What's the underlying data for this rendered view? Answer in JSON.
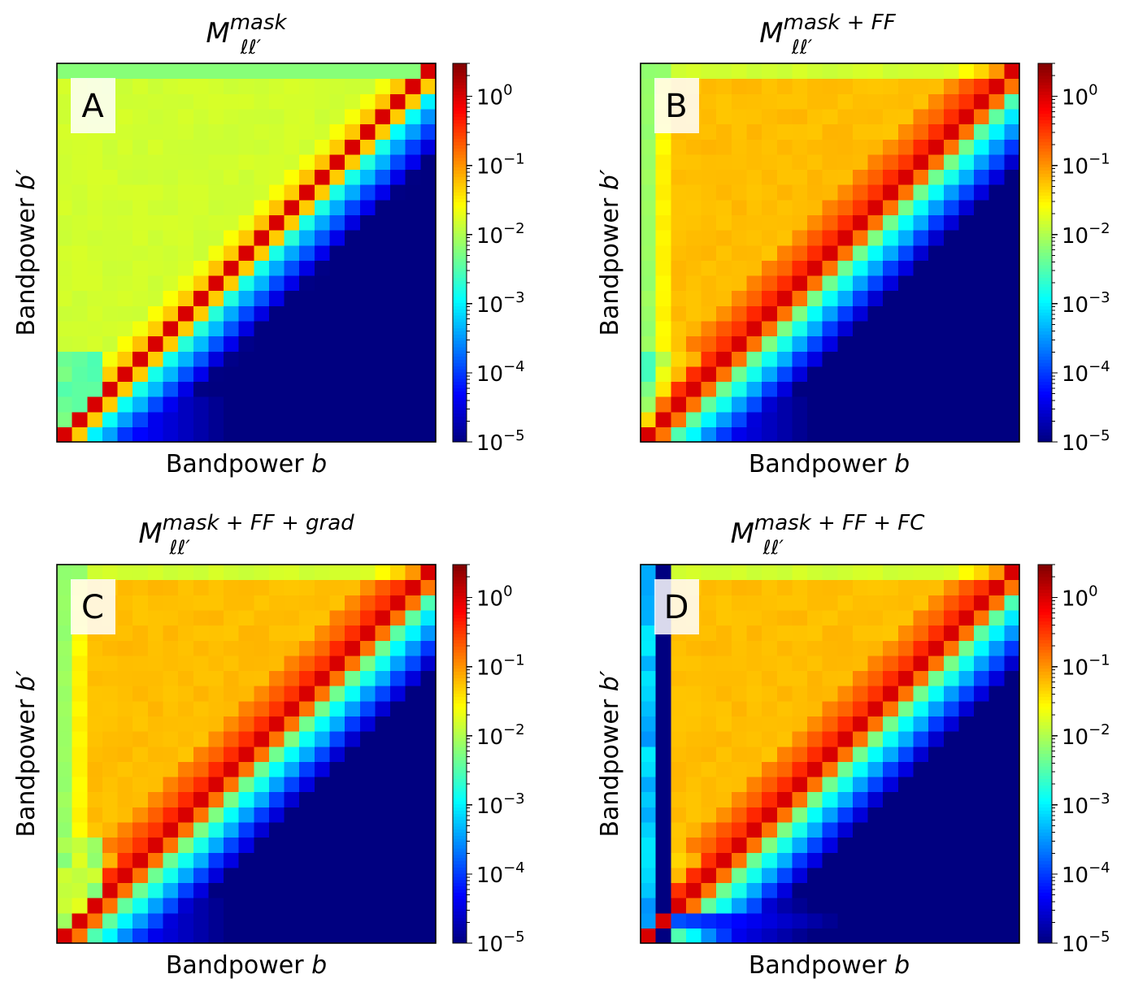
{
  "figure": {
    "colorbar_scale": "log",
    "colormap": "jet",
    "colorbar_ticks": [
      {
        "base": "10",
        "exp": "0",
        "value": 1
      },
      {
        "base": "10",
        "exp": "−1",
        "value": 0.1
      },
      {
        "base": "10",
        "exp": "−2",
        "value": 0.01
      },
      {
        "base": "10",
        "exp": "−3",
        "value": 0.001
      },
      {
        "base": "10",
        "exp": "−4",
        "value": 0.0001
      },
      {
        "base": "10",
        "exp": "−5",
        "value": 1e-05
      }
    ],
    "colorbar_range": [
      1e-05,
      3
    ]
  },
  "chart_data": [
    {
      "type": "heatmap",
      "panel_label": "A",
      "title": {
        "base": "M",
        "sub": "ℓℓ′",
        "sup": "mask"
      },
      "xlabel": {
        "text": "Bandpower ",
        "var": "b"
      },
      "ylabel": {
        "text": "Bandpower ",
        "var": "b′"
      },
      "grid_size": 25,
      "variant": "mask",
      "description_values": {
        "diagonal": 1.0,
        "upper_plateau": 0.015,
        "lower_far": 1e-05
      }
    },
    {
      "type": "heatmap",
      "panel_label": "B",
      "title": {
        "base": "M",
        "sub": "ℓℓ′",
        "sup": "mask + FF"
      },
      "xlabel": {
        "text": "Bandpower ",
        "var": "b"
      },
      "ylabel": {
        "text": "Bandpower ",
        "var": "b′"
      },
      "grid_size": 25,
      "variant": "ff",
      "description_values": {
        "diagonal": 1.0,
        "upper_plateau": 0.06,
        "lower_far": 1e-05
      }
    },
    {
      "type": "heatmap",
      "panel_label": "C",
      "title": {
        "base": "M",
        "sub": "ℓℓ′",
        "sup": "mask + FF + grad"
      },
      "xlabel": {
        "text": "Bandpower ",
        "var": "b"
      },
      "ylabel": {
        "text": "Bandpower ",
        "var": "b′"
      },
      "grid_size": 25,
      "variant": "grad",
      "description_values": {
        "diagonal": 1.0,
        "upper_plateau": 0.06,
        "lower_far": 1e-05
      }
    },
    {
      "type": "heatmap",
      "panel_label": "D",
      "title": {
        "base": "M",
        "sub": "ℓℓ′",
        "sup": "mask + FF + FC"
      },
      "xlabel": {
        "text": "Bandpower ",
        "var": "b"
      },
      "ylabel": {
        "text": "Bandpower ",
        "var": "b′"
      },
      "grid_size": 25,
      "variant": "fc",
      "description_values": {
        "diagonal": 1.0,
        "upper_plateau": 0.06,
        "lower_far": 1e-05
      }
    }
  ]
}
